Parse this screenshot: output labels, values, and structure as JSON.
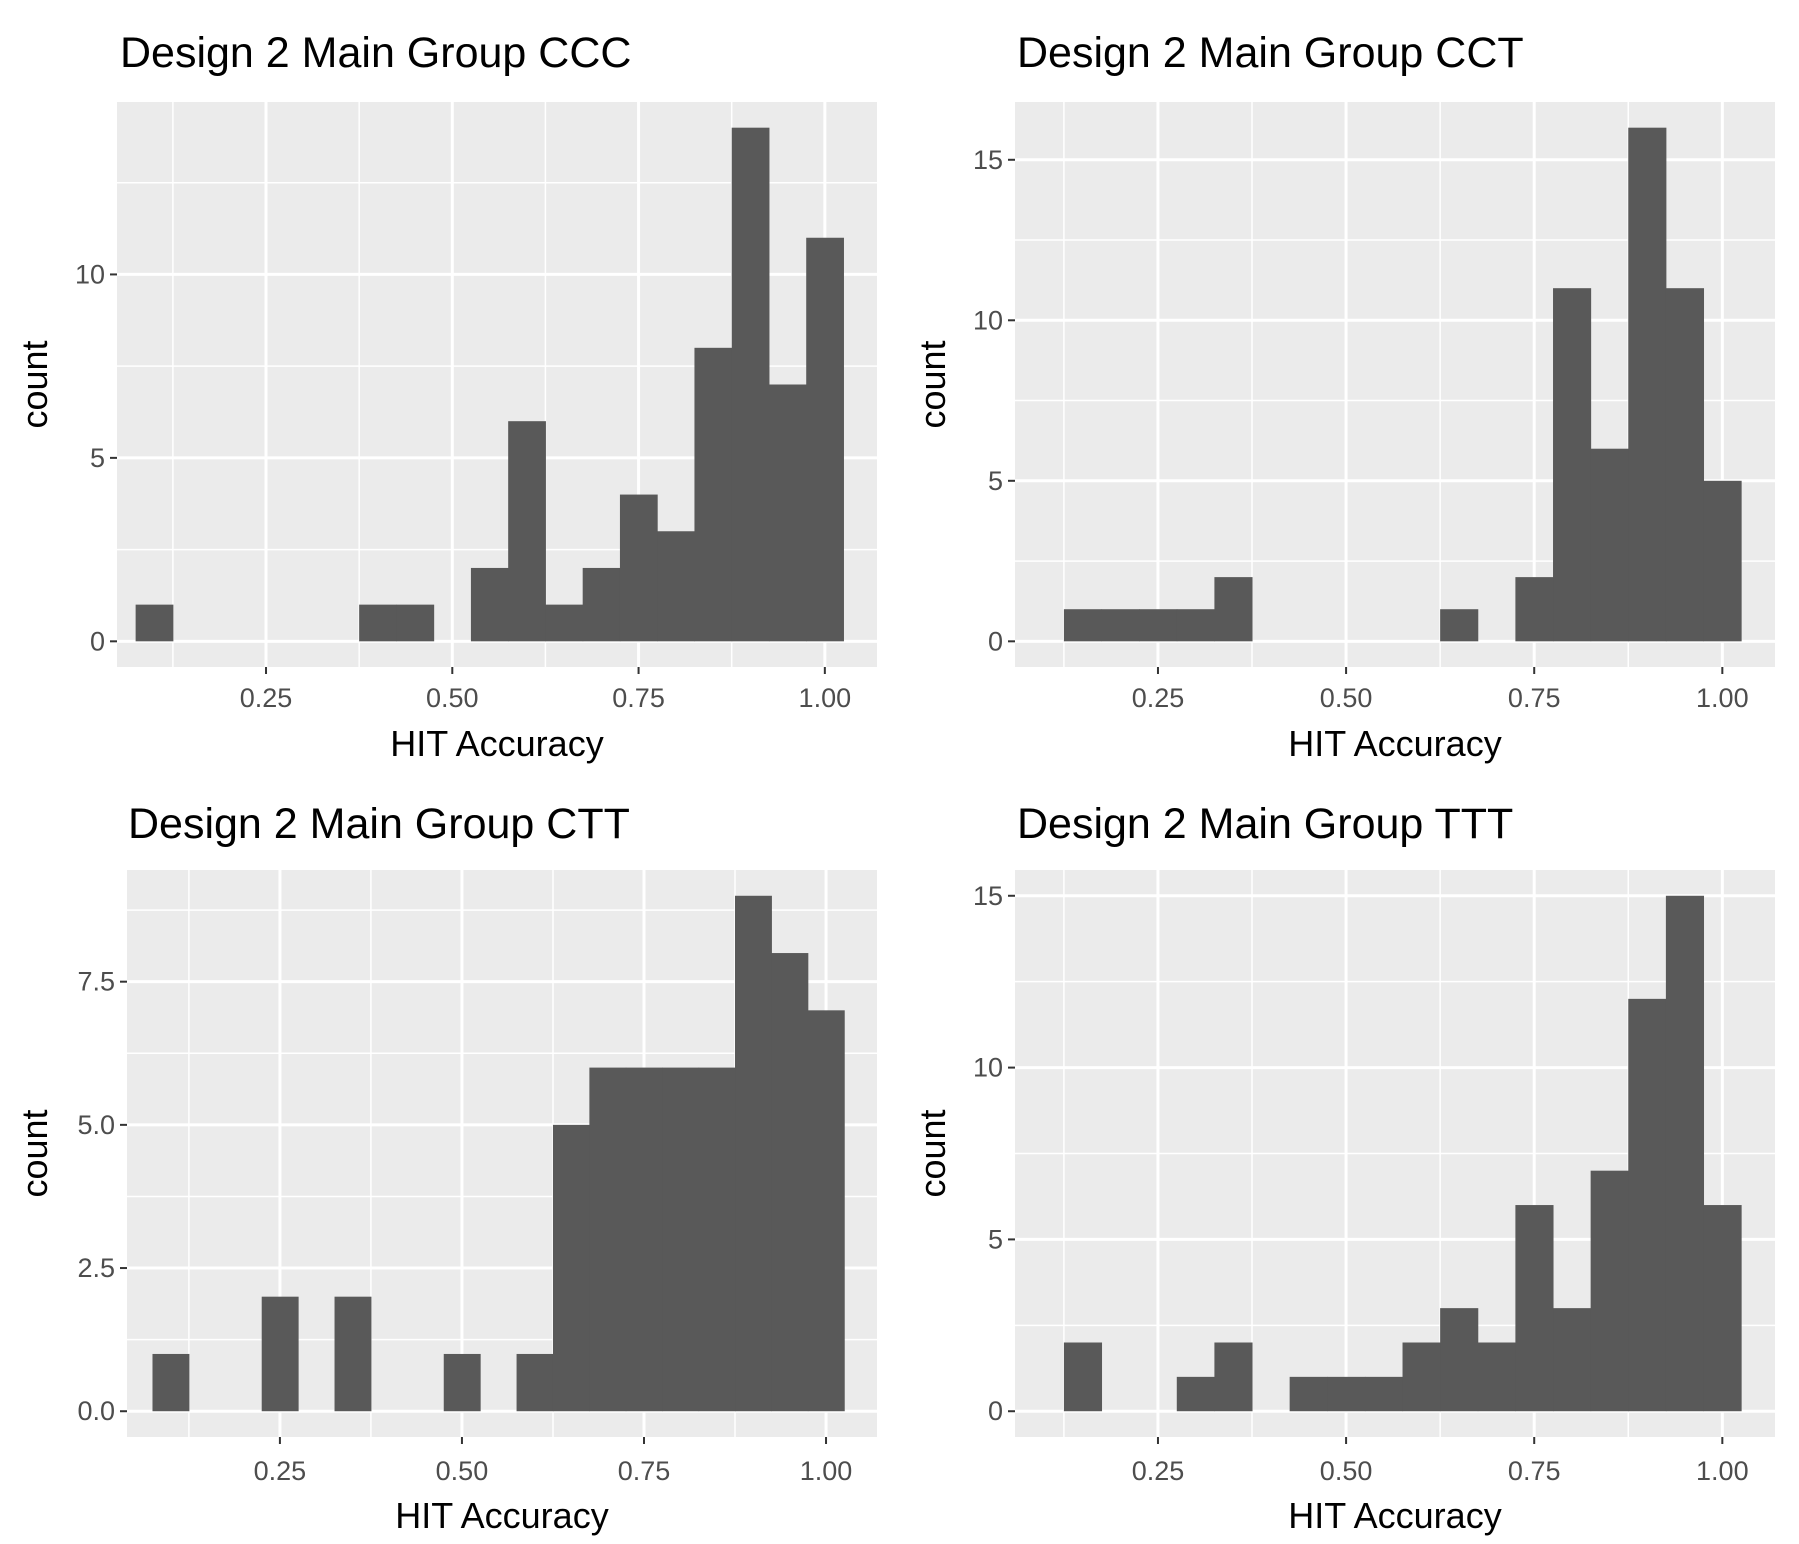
{
  "chart_data": [
    {
      "type": "bar",
      "title": "Design 2 Main Group CCC",
      "xlabel": "HIT Accuracy",
      "ylabel": "count",
      "xlim": [
        0.05,
        1.07
      ],
      "ylim": [
        -0.7,
        14.7
      ],
      "xticks": [
        0.25,
        0.5,
        0.75,
        1.0
      ],
      "xtick_labels": [
        "0.25",
        "0.50",
        "0.75",
        "1.00"
      ],
      "yticks": [
        0,
        5,
        10
      ],
      "ytick_labels": [
        "0",
        "5",
        "10"
      ],
      "bin_width": 0.05,
      "bin_centers": [
        0.1,
        0.15,
        0.2,
        0.25,
        0.3,
        0.35,
        0.4,
        0.45,
        0.5,
        0.55,
        0.6,
        0.65,
        0.7,
        0.75,
        0.8,
        0.85,
        0.9,
        0.95,
        1.0
      ],
      "counts": [
        1,
        0,
        0,
        0,
        0,
        0,
        1,
        1,
        0,
        2,
        6,
        1,
        2,
        4,
        3,
        8,
        14,
        7,
        11
      ],
      "fill": "#595959",
      "panel_bg": "#ebebeb",
      "grid": true
    },
    {
      "type": "bar",
      "title": "Design 2 Main Group CCT",
      "xlabel": "HIT Accuracy",
      "ylabel": "count",
      "xlim": [
        0.06,
        1.07
      ],
      "ylim": [
        -0.8,
        16.8
      ],
      "xticks": [
        0.25,
        0.5,
        0.75,
        1.0
      ],
      "xtick_labels": [
        "0.25",
        "0.50",
        "0.75",
        "1.00"
      ],
      "yticks": [
        0,
        5,
        10,
        15
      ],
      "ytick_labels": [
        "0",
        "5",
        "10",
        "15"
      ],
      "bin_width": 0.05,
      "bin_centers": [
        0.15,
        0.2,
        0.25,
        0.3,
        0.35,
        0.4,
        0.45,
        0.5,
        0.55,
        0.6,
        0.65,
        0.7,
        0.75,
        0.8,
        0.85,
        0.9,
        0.95,
        1.0
      ],
      "counts": [
        1,
        1,
        1,
        1,
        2,
        0,
        0,
        0,
        0,
        0,
        1,
        0,
        2,
        11,
        6,
        16,
        11,
        5
      ],
      "fill": "#595959",
      "panel_bg": "#ebebeb",
      "grid": true
    },
    {
      "type": "bar",
      "title": "Design 2 Main Group CTT",
      "xlabel": "HIT Accuracy",
      "ylabel": "count",
      "xlim": [
        0.04,
        1.07
      ],
      "ylim": [
        -0.45,
        9.45
      ],
      "xticks": [
        0.25,
        0.5,
        0.75,
        1.0
      ],
      "xtick_labels": [
        "0.25",
        "0.50",
        "0.75",
        "1.00"
      ],
      "yticks": [
        0.0,
        2.5,
        5.0,
        7.5
      ],
      "ytick_labels": [
        "0.0",
        "2.5",
        "5.0",
        "7.5"
      ],
      "bin_width": 0.05,
      "bin_centers": [
        0.1,
        0.15,
        0.2,
        0.25,
        0.3,
        0.35,
        0.4,
        0.45,
        0.5,
        0.55,
        0.6,
        0.65,
        0.7,
        0.75,
        0.8,
        0.85,
        0.9,
        0.95,
        1.0
      ],
      "counts": [
        1,
        0,
        0,
        2,
        0,
        2,
        0,
        0,
        1,
        0,
        1,
        5,
        6,
        6,
        6,
        6,
        9,
        8,
        7
      ],
      "fill": "#595959",
      "panel_bg": "#ebebeb",
      "grid": true
    },
    {
      "type": "bar",
      "title": "Design 2 Main Group TTT",
      "xlabel": "HIT Accuracy",
      "ylabel": "count",
      "xlim": [
        0.06,
        1.07
      ],
      "ylim": [
        -0.75,
        15.75
      ],
      "xticks": [
        0.25,
        0.5,
        0.75,
        1.0
      ],
      "xtick_labels": [
        "0.25",
        "0.50",
        "0.75",
        "1.00"
      ],
      "yticks": [
        0,
        5,
        10,
        15
      ],
      "ytick_labels": [
        "0",
        "5",
        "10",
        "15"
      ],
      "bin_width": 0.05,
      "bin_centers": [
        0.15,
        0.2,
        0.25,
        0.3,
        0.35,
        0.4,
        0.45,
        0.5,
        0.55,
        0.6,
        0.65,
        0.7,
        0.75,
        0.8,
        0.85,
        0.9,
        0.95,
        1.0
      ],
      "counts": [
        2,
        0,
        0,
        1,
        2,
        0,
        1,
        1,
        1,
        2,
        3,
        2,
        6,
        3,
        7,
        12,
        15,
        6
      ],
      "fill": "#595959",
      "panel_bg": "#ebebeb",
      "grid": true
    }
  ]
}
